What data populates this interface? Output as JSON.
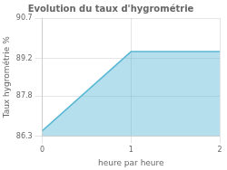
{
  "chart_data": {
    "type": "area",
    "title": "Evolution du taux d'hygrométrie",
    "xlabel": "heure par heure",
    "ylabel": "Taux hygrométrie %",
    "x": [
      0,
      1,
      2
    ],
    "values": [
      86.5,
      89.45,
      89.45
    ],
    "color": "#5bb8d4",
    "xlim": [
      0,
      2
    ],
    "ylim": [
      86.3,
      90.7
    ],
    "xticks": [
      0,
      1,
      2
    ],
    "yticks": [
      86.3,
      87.8,
      89.2,
      90.7
    ],
    "grid": true
  }
}
